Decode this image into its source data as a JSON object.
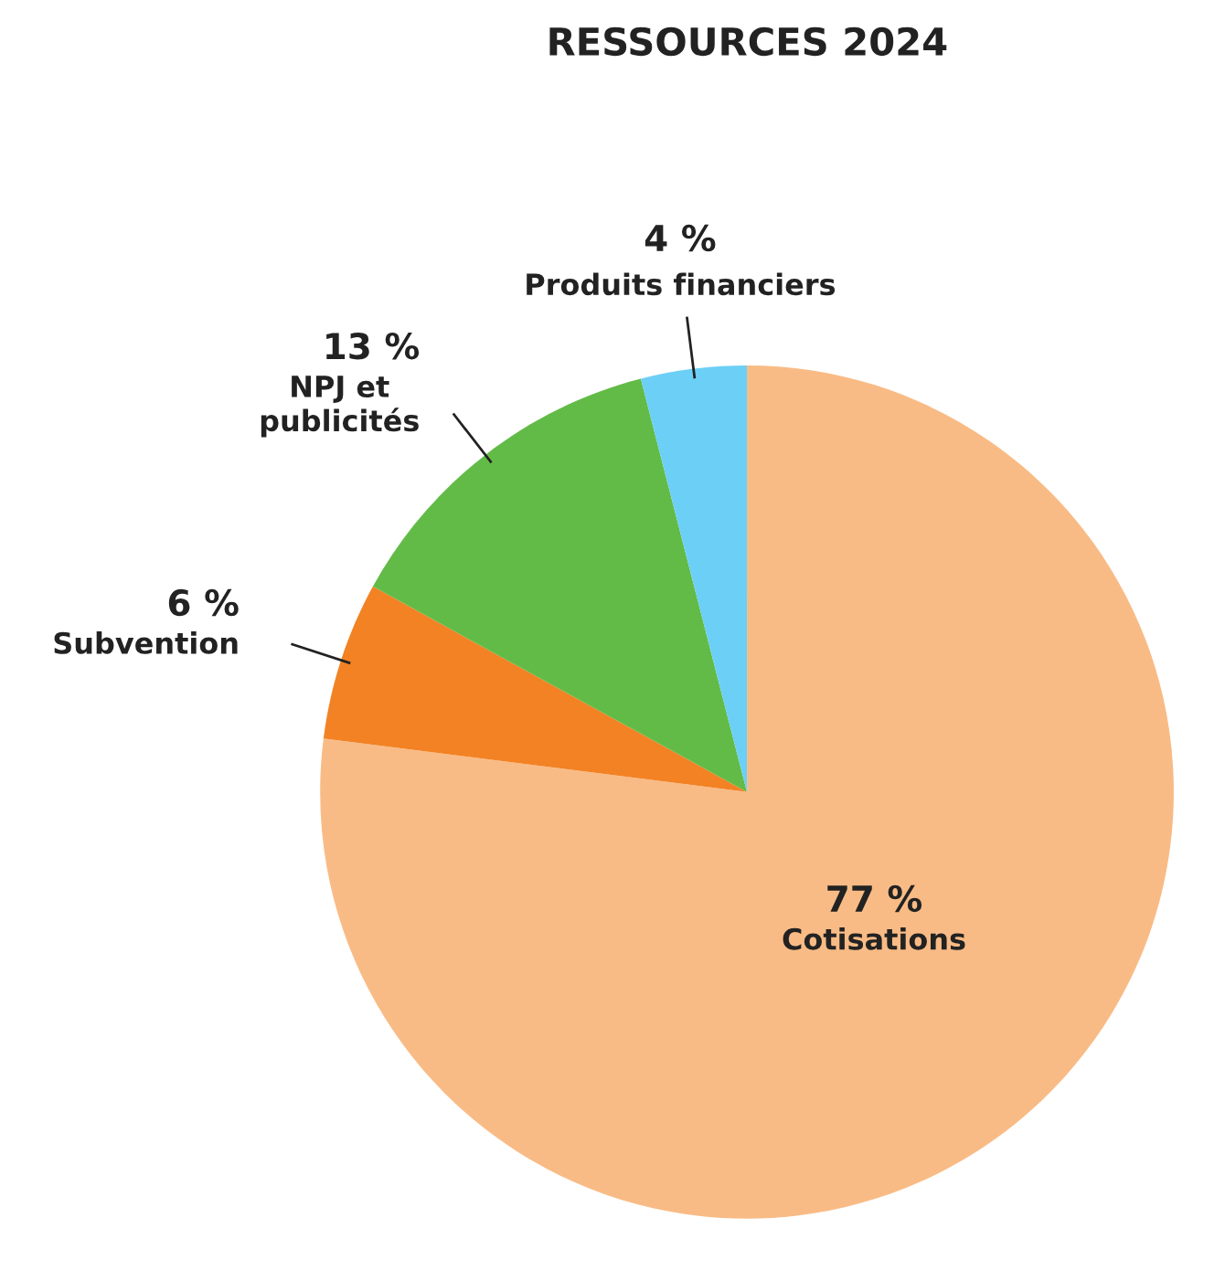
{
  "chart_data": {
    "type": "pie",
    "title": "RESSOURCES 2024",
    "categories": [
      "Cotisations",
      "Subvention",
      "NPJ et\npublicités",
      "Produits financiers"
    ],
    "values": [
      77,
      6,
      13,
      4
    ],
    "value_labels": [
      "77 %",
      "6 %",
      "13 %",
      "4 %"
    ],
    "colors": [
      "#f9bb85",
      "#f28223",
      "#62bb47",
      "#6ccff6"
    ],
    "legend": false
  }
}
